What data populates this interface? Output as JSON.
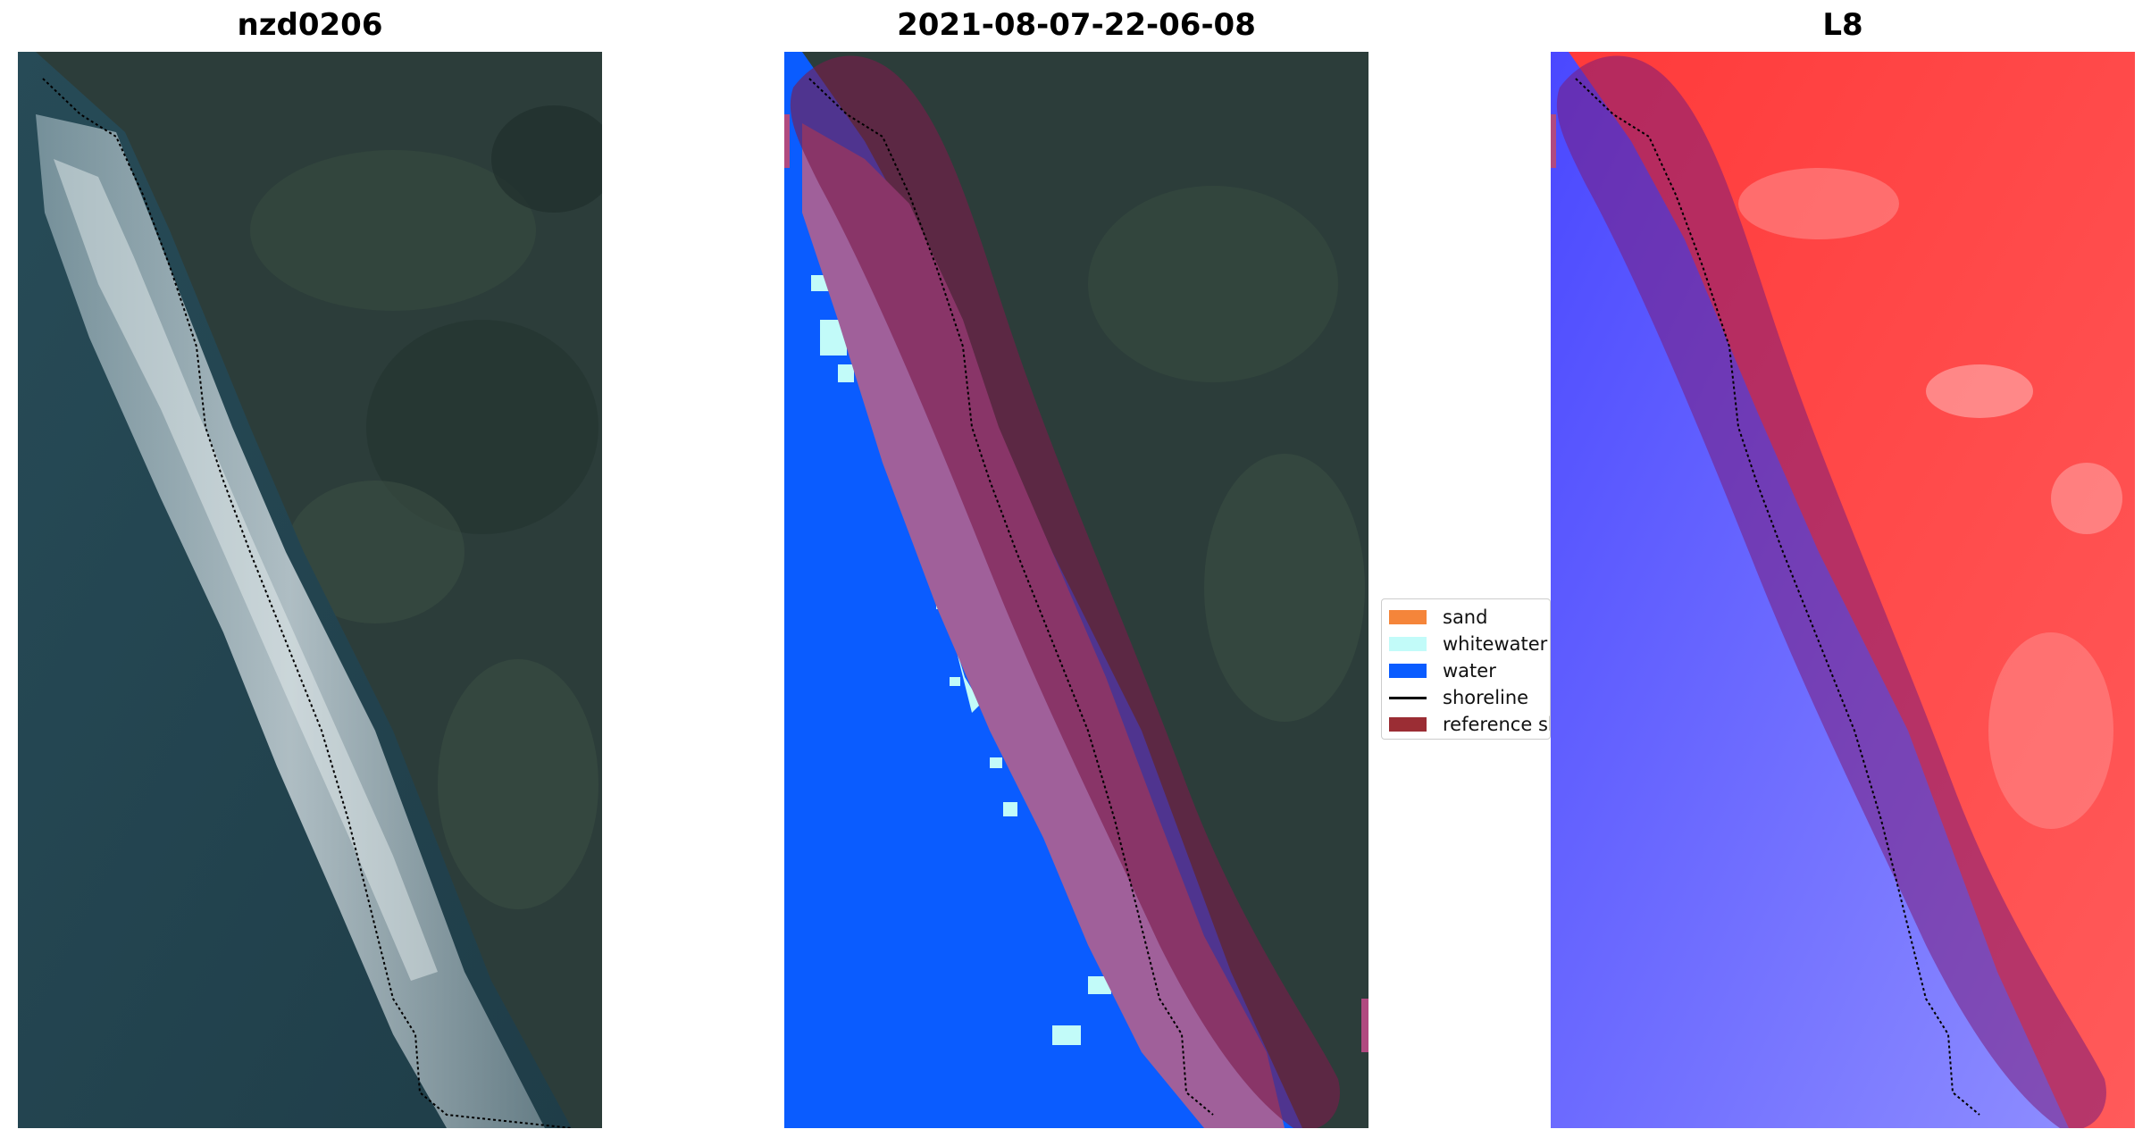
{
  "panels": [
    {
      "title": "nzd0206"
    },
    {
      "title": "2021-08-07-22-06-08"
    },
    {
      "title": "L8"
    }
  ],
  "legend": {
    "items": [
      {
        "label": "sand",
        "color": "#f5853a",
        "kind": "patch"
      },
      {
        "label": "whitewater",
        "color": "#c2fbf9",
        "kind": "patch"
      },
      {
        "label": "water",
        "color": "#0a5cff",
        "kind": "patch"
      },
      {
        "label": "shoreline",
        "color": "#000000",
        "kind": "line"
      },
      {
        "label": "reference shoreline buffer",
        "color": "#9b2d34",
        "kind": "patch"
      }
    ]
  },
  "colors": {
    "land": "#2c3d3a",
    "sea": "#23434f",
    "class_water": "#0a5cff",
    "class_sand_overlay": "#a0609a",
    "buffer": "#7a1c4a",
    "index_positive": "#ff2a2a",
    "index_negative": "#4a48ff"
  }
}
